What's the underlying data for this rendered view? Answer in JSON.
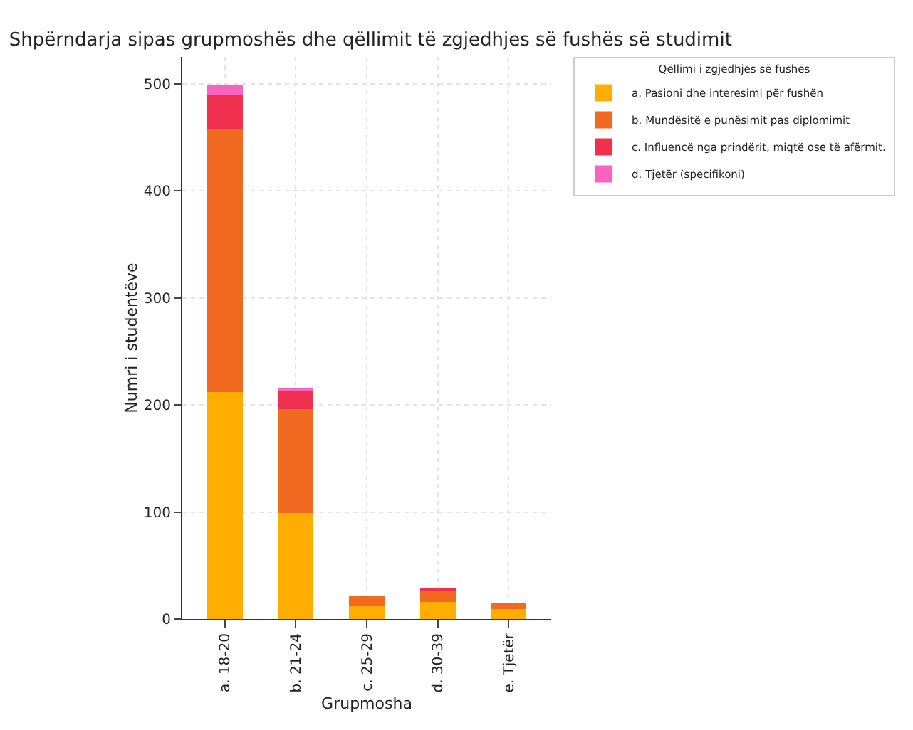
{
  "chart_data": {
    "type": "bar",
    "title": "Shpërndarja sipas grupmoshës dhe qëllimit të zgjedhjes së fushës së studimit",
    "xlabel": "Grupmosha",
    "ylabel": "Numri i studentëve",
    "legend_title": "Qëllimi i zgjedhjes së fushës",
    "categories": [
      "a. 18-20",
      "b. 21-24",
      "c. 25-29",
      "d. 30-39",
      "e. Tjetër"
    ],
    "stacked": true,
    "series": [
      {
        "name": "a. Pasioni dhe interesimi për fushën",
        "color": "#ffae00",
        "values": [
          212,
          99,
          12,
          16,
          9
        ]
      },
      {
        "name": "b. Mundësitë e punësimit pas diplomimit",
        "color": "#f26a21",
        "values": [
          245,
          97,
          9,
          11,
          6
        ]
      },
      {
        "name": "c. Influencë nga prindërit, miqtë ose të afërmit.",
        "color": "#f0304f",
        "values": [
          32,
          17,
          0,
          2,
          0
        ]
      },
      {
        "name": "d. Tjetër (specifikoni)",
        "color": "#f865c0",
        "values": [
          10,
          2,
          0,
          0,
          0
        ]
      }
    ],
    "ylim": [
      0,
      525
    ],
    "yticks": [
      0,
      100,
      200,
      300,
      400,
      500
    ],
    "grid": true,
    "legend": "top right"
  }
}
